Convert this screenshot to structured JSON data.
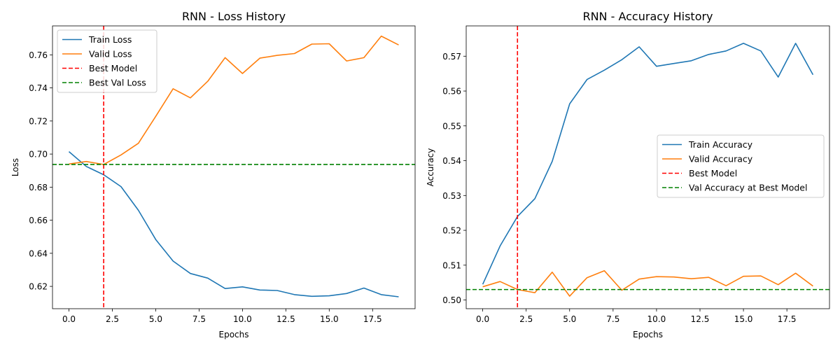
{
  "chart_data": [
    {
      "type": "line",
      "title": "RNN - Loss History",
      "xlabel": "Epochs",
      "ylabel": "Loss",
      "xlim": [
        -0.95,
        19.95
      ],
      "ylim": [
        0.6065,
        0.7775
      ],
      "xticks": [
        0,
        2.5,
        5,
        7.5,
        10,
        12.5,
        15,
        17.5
      ],
      "xtick_labels": [
        "0.0",
        "2.5",
        "5.0",
        "7.5",
        "10.0",
        "12.5",
        "15.0",
        "17.5"
      ],
      "yticks": [
        0.62,
        0.64,
        0.66,
        0.68,
        0.7,
        0.72,
        0.74,
        0.76
      ],
      "ytick_labels": [
        "0.62",
        "0.64",
        "0.66",
        "0.68",
        "0.70",
        "0.72",
        "0.74",
        "0.76"
      ],
      "x": [
        0,
        1,
        2,
        3,
        4,
        5,
        6,
        7,
        8,
        9,
        10,
        11,
        12,
        13,
        14,
        15,
        16,
        17,
        18,
        19
      ],
      "series": [
        {
          "name": "Train Loss",
          "color": "#1f77b4",
          "values": [
            0.7015,
            0.6925,
            0.6875,
            0.6803,
            0.666,
            0.6483,
            0.6353,
            0.6278,
            0.625,
            0.6187,
            0.6197,
            0.6178,
            0.6175,
            0.615,
            0.614,
            0.6143,
            0.6157,
            0.619,
            0.615,
            0.6137
          ]
        },
        {
          "name": "Valid Loss",
          "color": "#ff7f0e",
          "values": [
            0.694,
            0.6955,
            0.6937,
            0.6995,
            0.7065,
            0.7228,
            0.7395,
            0.734,
            0.744,
            0.7583,
            0.7487,
            0.758,
            0.7597,
            0.7608,
            0.7665,
            0.7667,
            0.7563,
            0.7583,
            0.7713,
            0.766
          ]
        }
      ],
      "vline": {
        "name": "Best Model",
        "x": 2,
        "color": "#ff0000"
      },
      "hline": {
        "name": "Best Val Loss",
        "y": 0.6937,
        "color": "#008000"
      },
      "legend": "upper-left"
    },
    {
      "type": "line",
      "title": "RNN - Accuracy History",
      "xlabel": "Epochs",
      "ylabel": "Accuracy",
      "xlim": [
        -0.95,
        19.95
      ],
      "ylim": [
        0.4975,
        0.5787
      ],
      "xticks": [
        0,
        2.5,
        5,
        7.5,
        10,
        12.5,
        15,
        17.5
      ],
      "xtick_labels": [
        "0.0",
        "2.5",
        "5.0",
        "7.5",
        "10.0",
        "12.5",
        "15.0",
        "17.5"
      ],
      "yticks": [
        0.5,
        0.51,
        0.52,
        0.53,
        0.54,
        0.55,
        0.56,
        0.57
      ],
      "ytick_labels": [
        "0.50",
        "0.51",
        "0.52",
        "0.53",
        "0.54",
        "0.55",
        "0.56",
        "0.57"
      ],
      "x": [
        0,
        1,
        2,
        3,
        4,
        5,
        6,
        7,
        8,
        9,
        10,
        11,
        12,
        13,
        14,
        15,
        16,
        17,
        18,
        19
      ],
      "series": [
        {
          "name": "Train Accuracy",
          "color": "#1f77b4",
          "values": [
            0.5045,
            0.5155,
            0.524,
            0.5291,
            0.5398,
            0.5563,
            0.5633,
            0.566,
            0.569,
            0.5727,
            0.5671,
            0.5679,
            0.5687,
            0.5705,
            0.5715,
            0.5737,
            0.5715,
            0.564,
            0.5737,
            0.5647
          ]
        },
        {
          "name": "Valid Accuracy",
          "color": "#ff7f0e",
          "values": [
            0.5038,
            0.5053,
            0.503,
            0.5021,
            0.508,
            0.5011,
            0.5064,
            0.5084,
            0.5028,
            0.506,
            0.5067,
            0.5066,
            0.5061,
            0.5065,
            0.5041,
            0.5068,
            0.5069,
            0.5044,
            0.5077,
            0.504
          ]
        }
      ],
      "vline": {
        "name": "Best Model",
        "x": 2,
        "color": "#ff0000"
      },
      "hline": {
        "name": "Val Accuracy at Best Model",
        "y": 0.503,
        "color": "#008000"
      },
      "legend": "center-right"
    }
  ]
}
